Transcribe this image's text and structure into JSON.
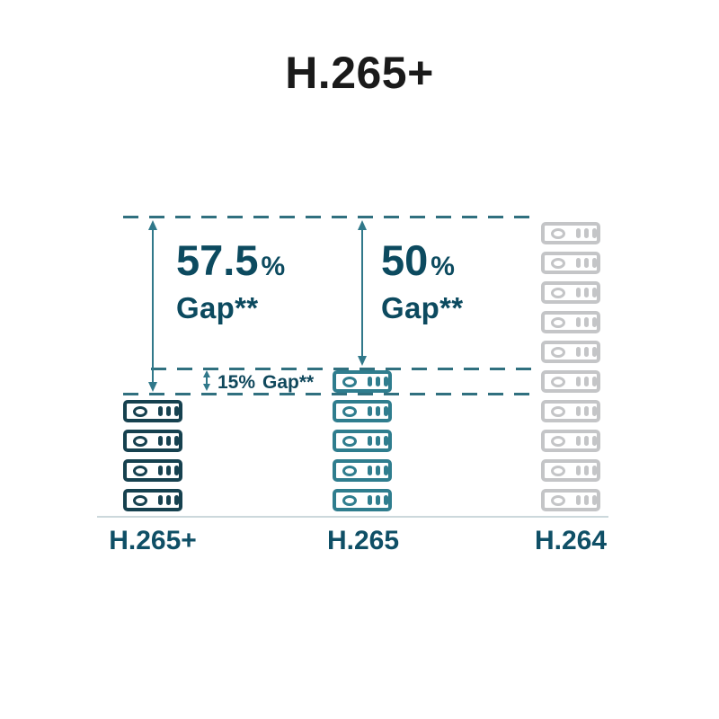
{
  "title": "H.265+",
  "chart_data": {
    "type": "bar",
    "title": "H.265+",
    "categories": [
      "H.265+",
      "H.265",
      "H.264"
    ],
    "values": [
      4,
      5,
      10
    ],
    "ylim": [
      0,
      10
    ],
    "grid": false,
    "legend": false,
    "annotations": [
      {
        "text": "57.5% Gap**",
        "between": [
          "H.264 top",
          "H.265+ top"
        ]
      },
      {
        "text": "50% Gap**",
        "between": [
          "H.264 top",
          "H.265 top"
        ]
      },
      {
        "text": "15% Gap**",
        "between": [
          "H.265 top",
          "H.265+ top"
        ]
      }
    ]
  },
  "columns": [
    {
      "label": "H.265+",
      "servers": 4,
      "color": "#16414f"
    },
    {
      "label": "H.265",
      "servers": 5,
      "color": "#2f7d8e"
    },
    {
      "label": "H.264",
      "servers": 10,
      "color": "#c4c5c7"
    }
  ],
  "gaps": [
    {
      "value": "57.5",
      "unit": "%",
      "label": "Gap**"
    },
    {
      "value": "50",
      "unit": "%",
      "label": "Gap**"
    },
    {
      "value": "15",
      "unit": "%",
      "label": "Gap**"
    }
  ],
  "colors": {
    "title_text": "#1a1a1a",
    "accent_text": "#0c4a5f",
    "dashed_line": "#30707f",
    "arrow": "#30788a",
    "baseline": "#ccd8dc",
    "h265plus_stack": "#16414f",
    "h265_stack": "#2f7d8e",
    "h264_stack": "#c4c5c7"
  }
}
